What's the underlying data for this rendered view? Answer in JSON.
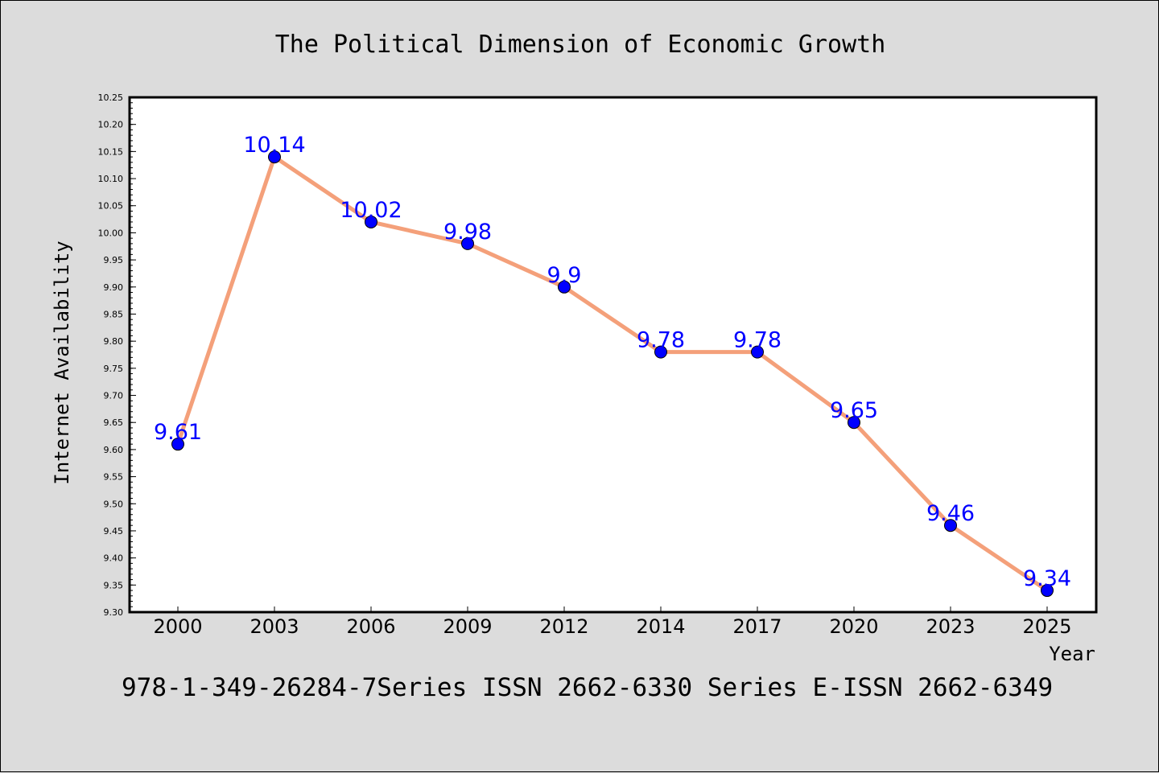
{
  "chart_data": {
    "type": "line",
    "title": "The Political Dimension of Economic Growth",
    "xlabel": "Year",
    "ylabel": "Internet Availability",
    "categories": [
      "2000",
      "2003",
      "2006",
      "2009",
      "2012",
      "2014",
      "2017",
      "2020",
      "2023",
      "2025"
    ],
    "series": [
      {
        "values": [
          9.61,
          10.14,
          10.02,
          9.98,
          9.9,
          9.78,
          9.78,
          9.65,
          9.46,
          9.34
        ],
        "labels": [
          "9.61",
          "10.14",
          "10.02",
          "9.98",
          "9.9",
          "9.78",
          "9.78",
          "9.65",
          "9.46",
          "9.34"
        ],
        "line_color": "#f4a07a",
        "marker_color": "#0000ff"
      }
    ],
    "ylim": [
      9.3,
      10.25
    ],
    "yticks": [
      "9.30",
      "9.35",
      "9.40",
      "9.45",
      "9.50",
      "9.55",
      "9.60",
      "9.65",
      "9.70",
      "9.75",
      "9.80",
      "9.85",
      "9.90",
      "9.95",
      "10.00",
      "10.05",
      "10.10",
      "10.15",
      "10.20",
      "10.25"
    ],
    "grid": false,
    "legend": "none"
  },
  "footer": {
    "text": "978-1-349-26284-7Series ISSN 2662-6330 Series E-ISSN 2662-6349"
  },
  "colors": {
    "background": "#dcdcdc",
    "plot_background": "#ffffff",
    "line": "#f4a07a",
    "marker": "#0000ff",
    "data_label": "#0000ff"
  }
}
